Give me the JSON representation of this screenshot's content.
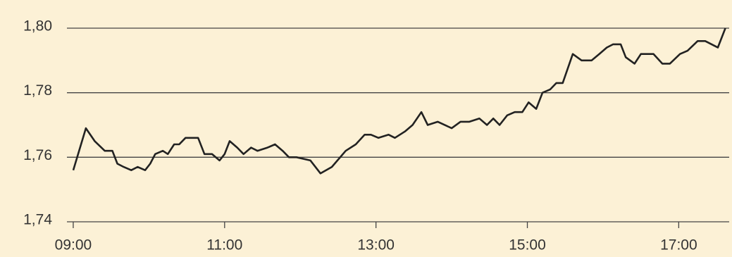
{
  "chart_data": {
    "type": "line",
    "x": [
      "09:00",
      "09:10",
      "09:17",
      "09:25",
      "09:31",
      "09:35",
      "09:40",
      "09:46",
      "09:51",
      "09:57",
      "10:01",
      "10:05",
      "10:11",
      "10:15",
      "10:20",
      "10:24",
      "10:29",
      "10:39",
      "10:44",
      "10:50",
      "10:56",
      "11:00",
      "11:04",
      "11:10",
      "11:15",
      "11:21",
      "11:26",
      "11:34",
      "11:40",
      "11:46",
      "11:51",
      "11:57",
      "12:08",
      "12:16",
      "12:25",
      "12:36",
      "12:44",
      "12:51",
      "12:56",
      "13:02",
      "13:10",
      "13:15",
      "13:23",
      "13:29",
      "13:36",
      "13:41",
      "13:49",
      "14:00",
      "14:07",
      "14:14",
      "14:22",
      "14:28",
      "14:33",
      "14:38",
      "14:44",
      "14:50",
      "14:56",
      "15:01",
      "15:07",
      "15:12",
      "15:18",
      "15:23",
      "15:28",
      "15:36",
      "15:43",
      "15:51",
      "15:57",
      "16:03",
      "16:08",
      "16:14",
      "16:18",
      "16:25",
      "16:30",
      "16:40",
      "16:47",
      "16:53",
      "17:01",
      "17:07",
      "17:15",
      "17:21",
      "17:31",
      "17:37"
    ],
    "series": [
      {
        "color": "#222222",
        "values": [
          1.756,
          1.769,
          1.765,
          1.762,
          1.762,
          1.758,
          1.757,
          1.756,
          1.757,
          1.756,
          1.758,
          1.761,
          1.762,
          1.761,
          1.764,
          1.764,
          1.766,
          1.766,
          1.761,
          1.761,
          1.759,
          1.761,
          1.765,
          1.763,
          1.761,
          1.763,
          1.762,
          1.763,
          1.764,
          1.762,
          1.76,
          1.76,
          1.759,
          1.755,
          1.757,
          1.762,
          1.764,
          1.767,
          1.767,
          1.766,
          1.767,
          1.766,
          1.768,
          1.77,
          1.774,
          1.77,
          1.771,
          1.769,
          1.771,
          1.771,
          1.772,
          1.77,
          1.772,
          1.77,
          1.773,
          1.774,
          1.774,
          1.777,
          1.775,
          1.78,
          1.781,
          1.783,
          1.783,
          1.792,
          1.79,
          1.79,
          1.792,
          1.794,
          1.795,
          1.795,
          1.791,
          1.789,
          1.792,
          1.792,
          1.789,
          1.789,
          1.792,
          1.793,
          1.796,
          1.796,
          1.794,
          1.8
        ]
      }
    ],
    "xlim": [
      "08:55",
      "17:40"
    ],
    "xticks": [
      "09:00",
      "11:00",
      "13:00",
      "15:00",
      "17:00"
    ],
    "ylim": [
      1.74,
      1.8
    ],
    "yticks": [
      {
        "value": 1.74,
        "label": "1,74"
      },
      {
        "value": 1.76,
        "label": "1,76"
      },
      {
        "value": 1.78,
        "label": "1,78"
      },
      {
        "value": 1.8,
        "label": "1,80"
      }
    ],
    "grid": true
  }
}
